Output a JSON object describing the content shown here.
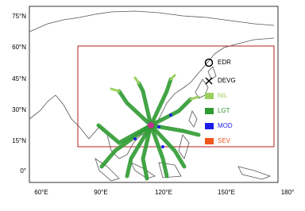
{
  "map": {
    "lat_labels": [
      "75°N",
      "60°N",
      "45°N",
      "30°N",
      "15°N",
      "0°"
    ],
    "lon_labels": [
      "60°E",
      "90°E",
      "120°E",
      "150°E",
      "180°"
    ],
    "legend": [
      {
        "label": "EDR"
      },
      {
        "label": "DEVG"
      },
      {
        "label": "NIL",
        "color": "#9bcf5e"
      },
      {
        "label": "LGT",
        "color": "#2f9a32"
      },
      {
        "label": "MOD",
        "color": "#1c1cf0"
      },
      {
        "label": "SEV",
        "color": "#f0561e"
      }
    ]
  }
}
